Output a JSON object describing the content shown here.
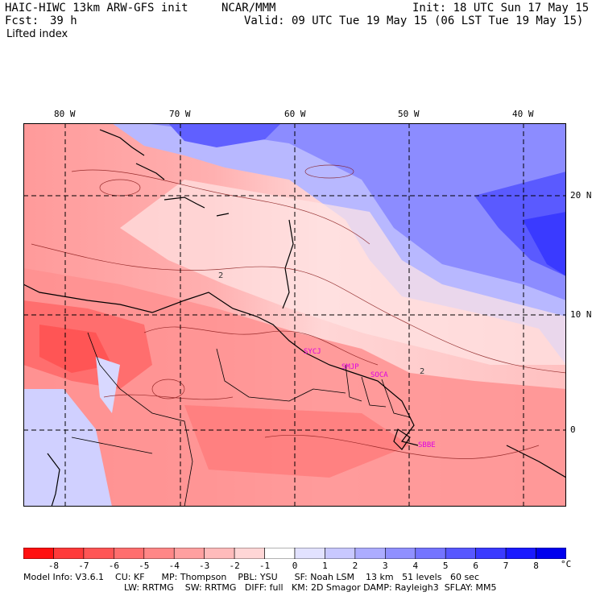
{
  "header": {
    "model": "HAIC-HIWC 13km ARW-GFS init",
    "org": "NCAR/MMM",
    "init": "Init: 18 UTC Sun 17 May 15",
    "fcst_label": "Fcst:",
    "fcst_value": "39 h",
    "valid": "Valid: 09 UTC Tue 19 May 15 (06 LST Tue 19 May 15)",
    "field": "Lifted index"
  },
  "axes": {
    "lon_labels": [
      "80 W",
      "70 W",
      "60 W",
      "50 W",
      "40 W"
    ],
    "lat_labels": [
      "20 N",
      "10 N",
      "0"
    ]
  },
  "stations": [
    "SYCJ",
    "SMJP",
    "SOCA",
    "SBBE"
  ],
  "contour_label": "2",
  "legend": {
    "unit": "°C",
    "ticks": [
      "-8",
      "-7",
      "-6",
      "-5",
      "-4",
      "-3",
      "-2",
      "-1",
      "0",
      "1",
      "2",
      "3",
      "4",
      "5",
      "6",
      "7",
      "8"
    ],
    "colors": [
      "#ff1010",
      "#ff3a3a",
      "#ff5555",
      "#ff6e6e",
      "#ff8787",
      "#ffa0a0",
      "#ffbbbb",
      "#ffd6d6",
      "#ffffff",
      "#e2e2ff",
      "#c8c8ff",
      "#acacff",
      "#9090ff",
      "#7474ff",
      "#5858ff",
      "#3a3aff",
      "#1a1aff",
      "#0000ee"
    ]
  },
  "footer": {
    "line1": "Model Info: V3.6.1    CU: KF      MP: Thompson    PBL: YSU      SF: Noah LSM    13 km   51 levels   60 sec",
    "line2": "LW: RRTMG    SW: RRTMG   DIFF: full   KM: 2D Smagor DAMP: Rayleigh3  SFLAY: MM5"
  }
}
